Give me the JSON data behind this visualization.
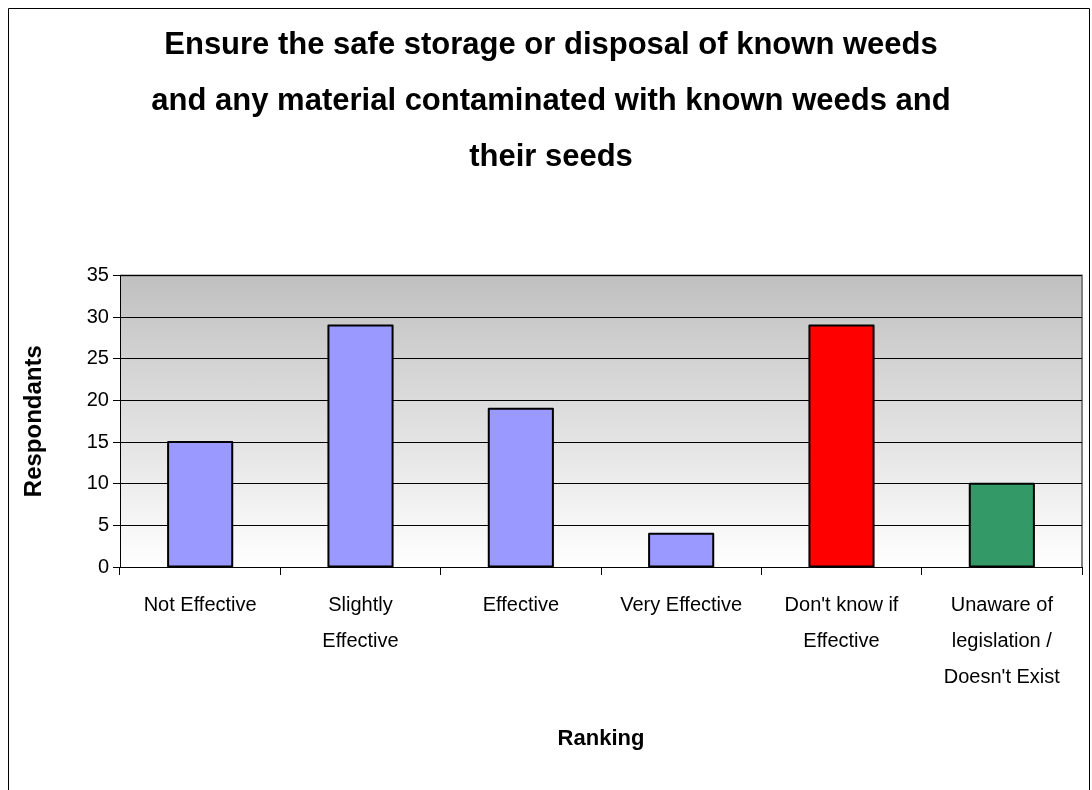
{
  "chart_data": {
    "type": "bar",
    "title": "Ensure the safe storage or disposal of known weeds and any material contaminated with known weeds and their seeds",
    "xlabel": "Ranking",
    "ylabel": "Respondants",
    "categories": [
      "Not Effective",
      "Slightly Effective",
      "Effective",
      "Very Effective",
      "Don't know if Effective",
      "Unaware of legislation / Doesn't Exist"
    ],
    "values": [
      15,
      29,
      19,
      4,
      29,
      10
    ],
    "colors": [
      "#9999ff",
      "#9999ff",
      "#9999ff",
      "#9999ff",
      "#ff0000",
      "#339966"
    ],
    "ylim": [
      0,
      35
    ],
    "yticks": [
      0,
      5,
      10,
      15,
      20,
      25,
      30,
      35
    ],
    "grid": "y"
  }
}
